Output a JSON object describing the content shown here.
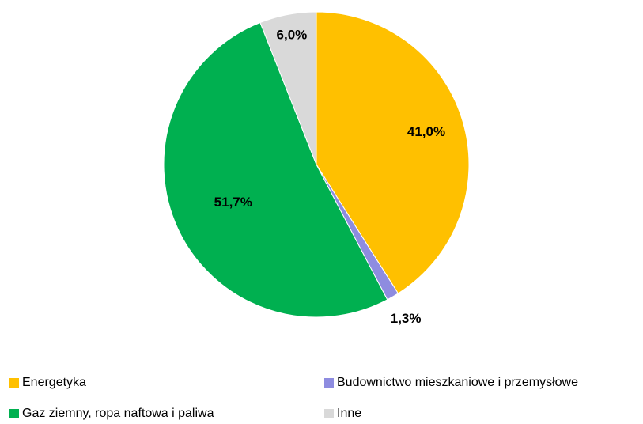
{
  "chart_data": {
    "type": "pie",
    "categories": [
      "Energetyka",
      "Budownictwo mieszkaniowe i przemysłowe",
      "Gaz ziemny, ropa naftowa i paliwa",
      "Inne"
    ],
    "values": [
      41.0,
      1.3,
      51.7,
      6.0
    ],
    "value_labels": [
      "41,0%",
      "1,3%",
      "51,7%",
      "6,0%"
    ],
    "colors": [
      "#FFC000",
      "#8E8CE0",
      "#00B050",
      "#D9D9D9"
    ],
    "legend": "bottom"
  }
}
